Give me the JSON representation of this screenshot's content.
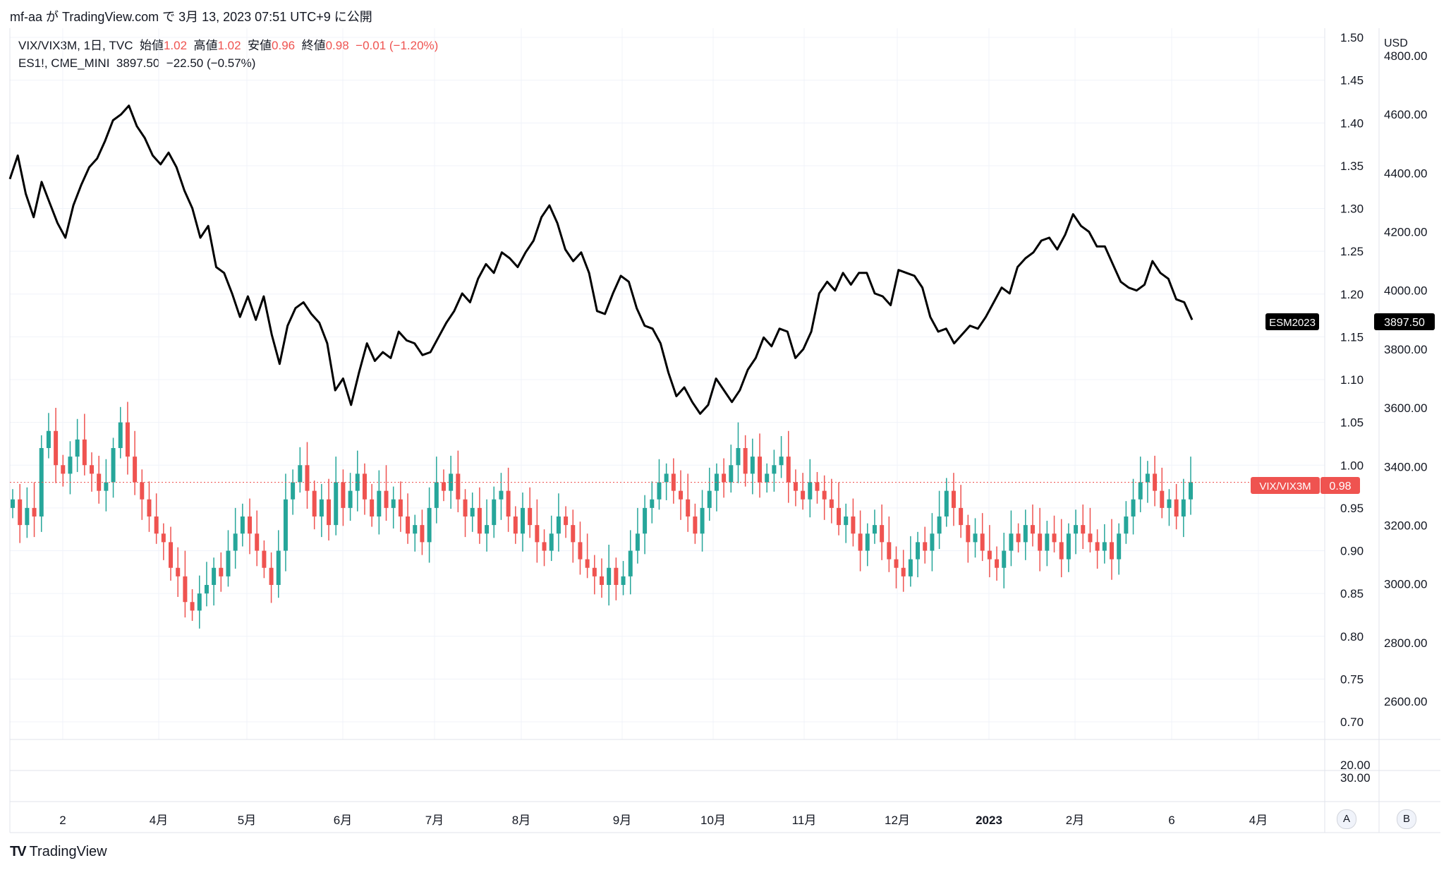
{
  "header": {
    "text": "mf-aa が TradingView.com で 3月 13, 2023 07:51 UTC+9 に公開"
  },
  "legend": {
    "line1": {
      "symbol": "VIX/VIX3M, 1日, TVC",
      "open_label": "始値",
      "open": "1.02",
      "high_label": "高値",
      "high": "1.02",
      "low_label": "安値",
      "low": "0.96",
      "close_label": "終値",
      "close": "0.98",
      "change": "−0.01 (−1.20%)"
    },
    "line2": {
      "symbol": "ES1!, CME_MINI",
      "value": "3897.50",
      "change": "−22.50 (−0.57%)"
    }
  },
  "axes": {
    "right_unit": "USD",
    "badge_es": {
      "label": "ESM2023",
      "value": "3897.50"
    },
    "badge_vix": {
      "label": "VIX/VIX3M",
      "value": "0.98"
    },
    "ratio_ticks": [
      "1.50",
      "1.45",
      "1.40",
      "1.35",
      "1.30",
      "1.25",
      "1.20",
      "1.15",
      "1.10",
      "1.05",
      "1.00",
      "0.95",
      "0.90",
      "0.85",
      "0.80",
      "0.75",
      "0.70"
    ],
    "usd_ticks": [
      "4800.00",
      "4600.00",
      "4400.00",
      "4200.00",
      "4000.00",
      "3800.00",
      "3600.00",
      "3400.00",
      "3200.00",
      "3000.00",
      "2800.00",
      "2600.00"
    ],
    "lower_ticks": [
      "20.00",
      "30.00"
    ],
    "x_ticks": [
      "2",
      "4月",
      "5月",
      "6月",
      "7月",
      "8月",
      "9月",
      "10月",
      "11月",
      "12月",
      "2023",
      "2月",
      "6",
      "4月"
    ]
  },
  "buttons": {
    "a": "A",
    "b": "B"
  },
  "footer": {
    "brand": "TradingView"
  },
  "colors": {
    "up": "#26a69a",
    "down": "#ef5350",
    "es_line": "#000000",
    "grid": "#f0f3fa"
  },
  "chart_data": {
    "type": "candlestick+line",
    "title": "",
    "series": [
      {
        "name": "VIX/VIX3M",
        "axis": "left-ratio",
        "kind": "candlestick",
        "ylim": [
          0.66,
          1.52
        ],
        "last": 0.98,
        "closes": [
          0.96,
          0.93,
          0.95,
          0.94,
          1.02,
          1.04,
          1.0,
          0.99,
          1.01,
          1.03,
          1.0,
          0.99,
          0.97,
          0.98,
          1.02,
          1.05,
          1.01,
          0.98,
          0.96,
          0.94,
          0.92,
          0.91,
          0.88,
          0.87,
          0.84,
          0.83,
          0.85,
          0.86,
          0.88,
          0.87,
          0.9,
          0.92,
          0.94,
          0.92,
          0.9,
          0.88,
          0.86,
          0.9,
          0.96,
          0.98,
          1.0,
          0.97,
          0.94,
          0.96,
          0.93,
          0.98,
          0.95,
          0.97,
          0.99,
          0.96,
          0.94,
          0.97,
          0.95,
          0.96,
          0.94,
          0.92,
          0.93,
          0.91,
          0.95,
          0.98,
          0.97,
          0.99,
          0.96,
          0.94,
          0.95,
          0.92,
          0.93,
          0.96,
          0.97,
          0.94,
          0.92,
          0.95,
          0.93,
          0.91,
          0.9,
          0.92,
          0.94,
          0.93,
          0.91,
          0.89,
          0.88,
          0.87,
          0.86,
          0.88,
          0.86,
          0.87,
          0.9,
          0.92,
          0.95,
          0.96,
          0.98,
          0.99,
          0.97,
          0.96,
          0.94,
          0.92,
          0.95,
          0.97,
          0.99,
          0.98,
          1.0,
          1.02,
          0.99,
          1.01,
          0.98,
          0.99,
          1.0,
          1.01,
          0.98,
          0.97,
          0.96,
          0.98,
          0.97,
          0.96,
          0.95,
          0.93,
          0.94,
          0.92,
          0.9,
          0.92,
          0.93,
          0.91,
          0.89,
          0.88,
          0.87,
          0.89,
          0.91,
          0.9,
          0.92,
          0.94,
          0.97,
          0.95,
          0.93,
          0.91,
          0.92,
          0.9,
          0.89,
          0.88,
          0.9,
          0.92,
          0.91,
          0.93,
          0.92,
          0.9,
          0.92,
          0.91,
          0.89,
          0.92,
          0.93,
          0.92,
          0.91,
          0.9,
          0.91,
          0.89,
          0.92,
          0.94,
          0.96,
          0.98,
          0.99,
          0.97,
          0.95,
          0.96,
          0.94,
          0.96,
          0.98
        ],
        "open": 1.02,
        "high": 1.02,
        "low": 0.96,
        "close": 0.98
      },
      {
        "name": "ESM2023",
        "axis": "right-usd",
        "kind": "line",
        "ylim": [
          2450,
          4860
        ],
        "last": 3897.5,
        "values": [
          4380,
          4460,
          4330,
          4250,
          4370,
          4300,
          4230,
          4180,
          4290,
          4360,
          4420,
          4450,
          4510,
          4580,
          4600,
          4630,
          4560,
          4520,
          4460,
          4430,
          4470,
          4420,
          4340,
          4280,
          4180,
          4220,
          4080,
          4060,
          3990,
          3910,
          3980,
          3900,
          3980,
          3850,
          3750,
          3880,
          3940,
          3960,
          3920,
          3890,
          3820,
          3660,
          3700,
          3610,
          3720,
          3820,
          3760,
          3790,
          3770,
          3860,
          3830,
          3820,
          3780,
          3790,
          3840,
          3890,
          3930,
          3990,
          3960,
          4040,
          4090,
          4060,
          4130,
          4110,
          4080,
          4130,
          4170,
          4250,
          4290,
          4230,
          4140,
          4100,
          4130,
          4060,
          3930,
          3920,
          3990,
          4050,
          4030,
          3940,
          3880,
          3870,
          3820,
          3720,
          3640,
          3670,
          3620,
          3580,
          3610,
          3700,
          3660,
          3620,
          3660,
          3730,
          3770,
          3840,
          3810,
          3870,
          3860,
          3770,
          3800,
          3860,
          3990,
          4030,
          4000,
          4060,
          4020,
          4060,
          4060,
          3990,
          3980,
          3950,
          4070,
          4060,
          4050,
          4010,
          3910,
          3860,
          3870,
          3820,
          3850,
          3880,
          3870,
          3910,
          3960,
          4010,
          3990,
          4080,
          4110,
          4130,
          4170,
          4180,
          4140,
          4190,
          4260,
          4220,
          4200,
          4150,
          4150,
          4090,
          4030,
          4010,
          4000,
          4020,
          4100,
          4060,
          4040,
          3970,
          3960,
          3900
        ]
      }
    ]
  }
}
